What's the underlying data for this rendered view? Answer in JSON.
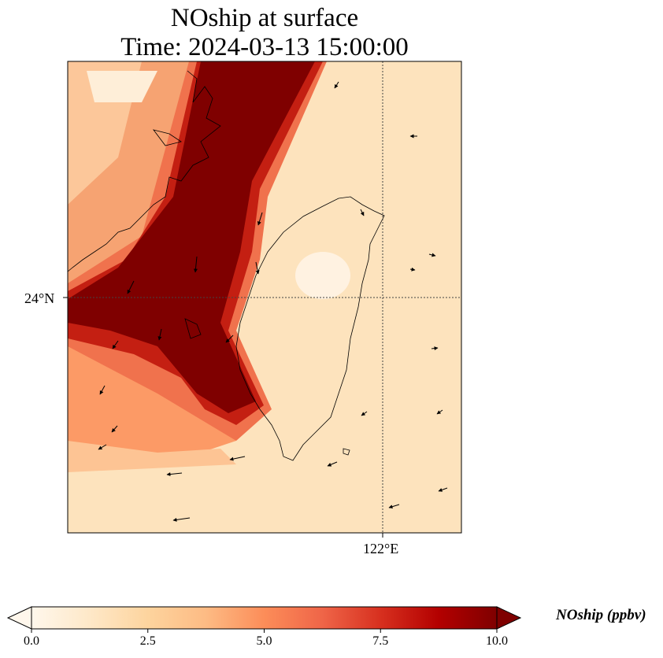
{
  "title": {
    "line1": "NOship at surface",
    "line2": "Time: 2024-03-13 15:00:00"
  },
  "axes": {
    "lat_tick": "24°N",
    "lon_tick": "122°E",
    "gridline_style": "dotted"
  },
  "colorbar": {
    "label": "NOship (ppbv)",
    "colormap": "OrRd",
    "min": 0.0,
    "max": 10.0,
    "extend": "both",
    "ticks": [
      "0.0",
      "2.5",
      "5.0",
      "7.5",
      "10.0"
    ],
    "colors": [
      "#fff7ec",
      "#fee8c8",
      "#fdd49e",
      "#fdbb84",
      "#fc8d59",
      "#ef6548",
      "#d7301f",
      "#b30000",
      "#7f0000"
    ]
  }
}
